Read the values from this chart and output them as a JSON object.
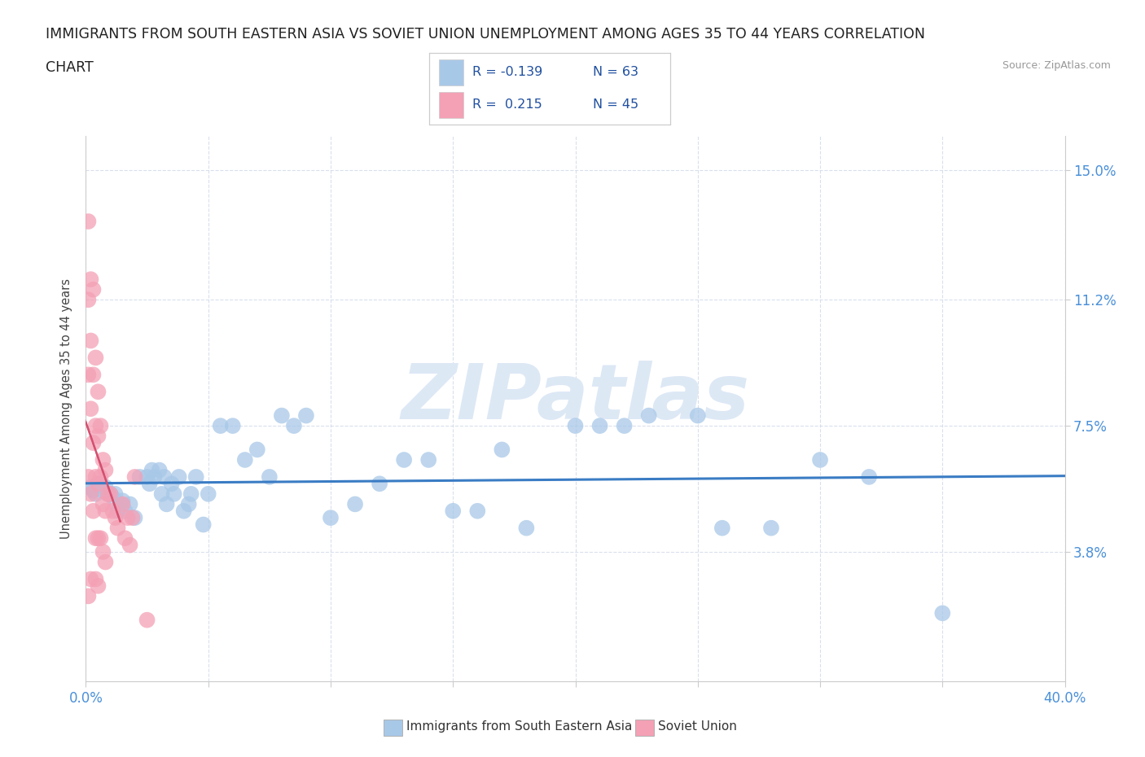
{
  "title_line1": "IMMIGRANTS FROM SOUTH EASTERN ASIA VS SOVIET UNION UNEMPLOYMENT AMONG AGES 35 TO 44 YEARS CORRELATION",
  "title_line2": "CHART",
  "source": "Source: ZipAtlas.com",
  "ylabel": "Unemployment Among Ages 35 to 44 years",
  "xlim": [
    0.0,
    0.4
  ],
  "ylim": [
    0.0,
    0.16
  ],
  "xticks": [
    0.0,
    0.05,
    0.1,
    0.15,
    0.2,
    0.25,
    0.3,
    0.35,
    0.4
  ],
  "ytick_positions": [
    0.038,
    0.075,
    0.112,
    0.15
  ],
  "ytick_labels": [
    "3.8%",
    "7.5%",
    "11.2%",
    "15.0%"
  ],
  "blue_color": "#a8c8e8",
  "pink_color": "#f4a0b5",
  "trend_blue_color": "#3a7cc4",
  "trend_pink_color": "#d45070",
  "watermark_color": "#dde8f5",
  "background_color": "#ffffff",
  "grid_color": "#d0d8e8",
  "axis_label_color": "#4a90d9",
  "title_fontsize": 12.5,
  "legend_text_color": "#2050a0",
  "blue_scatter_x": [
    0.002,
    0.003,
    0.004,
    0.005,
    0.006,
    0.007,
    0.008,
    0.009,
    0.01,
    0.011,
    0.012,
    0.013,
    0.014,
    0.015,
    0.016,
    0.018,
    0.02,
    0.022,
    0.025,
    0.026,
    0.027,
    0.028,
    0.03,
    0.031,
    0.032,
    0.033,
    0.035,
    0.036,
    0.038,
    0.04,
    0.042,
    0.043,
    0.045,
    0.048,
    0.05,
    0.055,
    0.06,
    0.065,
    0.07,
    0.075,
    0.08,
    0.085,
    0.09,
    0.1,
    0.11,
    0.12,
    0.13,
    0.14,
    0.15,
    0.16,
    0.17,
    0.18,
    0.2,
    0.21,
    0.22,
    0.23,
    0.25,
    0.26,
    0.28,
    0.3,
    0.32,
    0.35
  ],
  "blue_scatter_y": [
    0.057,
    0.056,
    0.055,
    0.058,
    0.058,
    0.056,
    0.057,
    0.055,
    0.055,
    0.054,
    0.055,
    0.05,
    0.052,
    0.053,
    0.05,
    0.052,
    0.048,
    0.06,
    0.06,
    0.058,
    0.062,
    0.06,
    0.062,
    0.055,
    0.06,
    0.052,
    0.058,
    0.055,
    0.06,
    0.05,
    0.052,
    0.055,
    0.06,
    0.046,
    0.055,
    0.075,
    0.075,
    0.065,
    0.068,
    0.06,
    0.078,
    0.075,
    0.078,
    0.048,
    0.052,
    0.058,
    0.065,
    0.065,
    0.05,
    0.05,
    0.068,
    0.045,
    0.075,
    0.075,
    0.075,
    0.078,
    0.078,
    0.045,
    0.045,
    0.065,
    0.06,
    0.02
  ],
  "pink_scatter_x": [
    0.001,
    0.001,
    0.001,
    0.001,
    0.001,
    0.002,
    0.002,
    0.002,
    0.002,
    0.002,
    0.003,
    0.003,
    0.003,
    0.003,
    0.004,
    0.004,
    0.004,
    0.004,
    0.004,
    0.005,
    0.005,
    0.005,
    0.005,
    0.005,
    0.006,
    0.006,
    0.006,
    0.007,
    0.007,
    0.007,
    0.008,
    0.008,
    0.008,
    0.009,
    0.01,
    0.011,
    0.012,
    0.013,
    0.015,
    0.016,
    0.017,
    0.018,
    0.019,
    0.02,
    0.025
  ],
  "pink_scatter_y": [
    0.135,
    0.112,
    0.09,
    0.06,
    0.025,
    0.118,
    0.1,
    0.08,
    0.055,
    0.03,
    0.115,
    0.09,
    0.07,
    0.05,
    0.095,
    0.075,
    0.06,
    0.042,
    0.03,
    0.085,
    0.072,
    0.058,
    0.042,
    0.028,
    0.075,
    0.06,
    0.042,
    0.065,
    0.052,
    0.038,
    0.062,
    0.05,
    0.035,
    0.055,
    0.055,
    0.05,
    0.048,
    0.045,
    0.052,
    0.042,
    0.048,
    0.04,
    0.048,
    0.06,
    0.018
  ]
}
